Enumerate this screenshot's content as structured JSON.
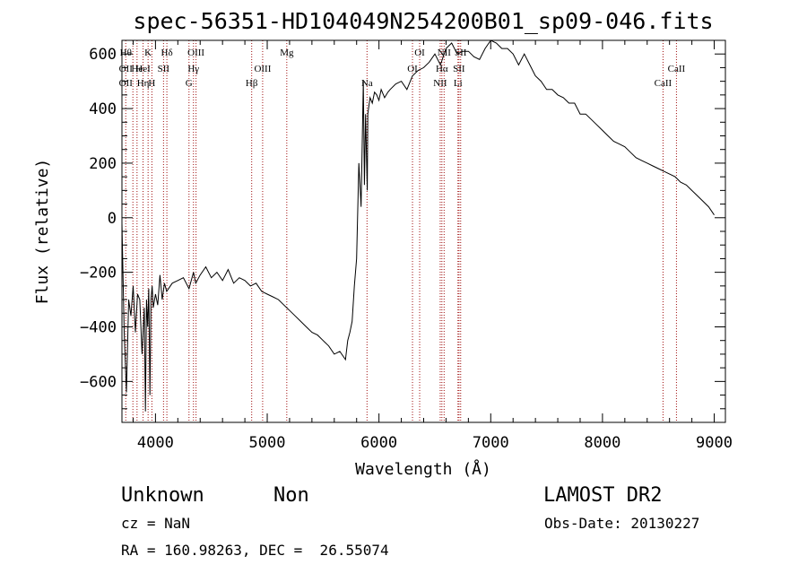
{
  "chart_data": {
    "type": "line",
    "title": "spec-56351-HD104049N254200B01_sp09-046.fits",
    "xlabel": "Wavelength (Å)",
    "ylabel": "Flux (relative)",
    "xlim": [
      3700,
      9100
    ],
    "ylim": [
      -750,
      650
    ],
    "grid": false,
    "x_ticks": [
      {
        "value": 4000,
        "label": "4000"
      },
      {
        "value": 5000,
        "label": "5000"
      },
      {
        "value": 6000,
        "label": "6000"
      },
      {
        "value": 7000,
        "label": "7000"
      },
      {
        "value": 8000,
        "label": "8000"
      },
      {
        "value": 9000,
        "label": "9000"
      }
    ],
    "y_ticks": [
      {
        "value": -600,
        "label": "−600"
      },
      {
        "value": -400,
        "label": "−400"
      },
      {
        "value": -200,
        "label": "−200"
      },
      {
        "value": 0,
        "label": "0"
      },
      {
        "value": 200,
        "label": "200"
      },
      {
        "value": 400,
        "label": "400"
      },
      {
        "value": 600,
        "label": "600"
      }
    ],
    "series": [
      {
        "x": [
          3700,
          3720,
          3740,
          3760,
          3780,
          3800,
          3820,
          3840,
          3860,
          3880,
          3900,
          3910,
          3920,
          3930,
          3940,
          3950,
          3960,
          3970,
          3980,
          4000,
          4020,
          4040,
          4060,
          4080,
          4100,
          4150,
          4200,
          4250,
          4300,
          4340,
          4360,
          4400,
          4450,
          4500,
          4550,
          4600,
          4650,
          4700,
          4750,
          4800,
          4850,
          4900,
          4950,
          5000,
          5050,
          5100,
          5150,
          5200,
          5250,
          5300,
          5350,
          5400,
          5450,
          5500,
          5550,
          5600,
          5650,
          5700,
          5720,
          5740,
          5760,
          5780,
          5800,
          5820,
          5840,
          5860,
          5870,
          5880,
          5890,
          5895,
          5900,
          5910,
          5920,
          5940,
          5960,
          5980,
          6000,
          6020,
          6050,
          6080,
          6100,
          6150,
          6200,
          6250,
          6300,
          6350,
          6400,
          6450,
          6500,
          6550,
          6600,
          6650,
          6700,
          6750,
          6800,
          6850,
          6900,
          6950,
          7000,
          7050,
          7100,
          7150,
          7200,
          7250,
          7300,
          7350,
          7400,
          7450,
          7500,
          7550,
          7600,
          7650,
          7700,
          7750,
          7800,
          7850,
          7900,
          7950,
          8000,
          8050,
          8100,
          8150,
          8200,
          8250,
          8300,
          8350,
          8400,
          8450,
          8500,
          8550,
          8600,
          8650,
          8700,
          8750,
          8800,
          8850,
          8900,
          8950,
          9000
        ],
        "y": [
          -20,
          -420,
          -640,
          -300,
          -360,
          -250,
          -420,
          -280,
          -300,
          -500,
          -330,
          -710,
          -300,
          -400,
          -260,
          -650,
          -300,
          -250,
          -330,
          -280,
          -320,
          -210,
          -300,
          -240,
          -270,
          -240,
          -230,
          -220,
          -260,
          -200,
          -240,
          -210,
          -180,
          -220,
          -200,
          -230,
          -190,
          -240,
          -220,
          -230,
          -250,
          -240,
          -270,
          -280,
          -290,
          -300,
          -320,
          -340,
          -360,
          -380,
          -400,
          -420,
          -430,
          -450,
          -470,
          -500,
          -490,
          -520,
          -450,
          -420,
          -380,
          -250,
          -150,
          200,
          40,
          500,
          120,
          380,
          200,
          100,
          380,
          410,
          440,
          420,
          460,
          450,
          430,
          470,
          440,
          460,
          470,
          490,
          500,
          470,
          520,
          540,
          550,
          570,
          600,
          560,
          620,
          640,
          600,
          610,
          610,
          590,
          580,
          620,
          660,
          640,
          620,
          620,
          600,
          560,
          600,
          560,
          520,
          500,
          470,
          470,
          450,
          440,
          420,
          420,
          380,
          380,
          360,
          340,
          320,
          300,
          280,
          270,
          260,
          240,
          220,
          210,
          200,
          190,
          180,
          170,
          160,
          150,
          130,
          120,
          100,
          80,
          60,
          40,
          10
        ]
      }
    ],
    "lines": [
      {
        "x": 3734,
        "labels": [
          {
            "row": 0,
            "text": "Hθ"
          },
          {
            "row": 1,
            "text": "OII"
          },
          {
            "row": 2,
            "text": "OII"
          }
        ]
      },
      {
        "x": 3798,
        "labels": [
          {
            "row": 0,
            "text": ""
          }
        ]
      },
      {
        "x": 3835,
        "labels": [
          {
            "row": 1,
            "text": "He"
          }
        ]
      },
      {
        "x": 3889,
        "labels": [
          {
            "row": 1,
            "text": "HeI"
          },
          {
            "row": 2,
            "text": "Hη"
          }
        ]
      },
      {
        "x": 3934,
        "labels": [
          {
            "row": 0,
            "text": "K"
          }
        ]
      },
      {
        "x": 3968,
        "labels": [
          {
            "row": 2,
            "text": "H"
          }
        ]
      },
      {
        "x": 4072,
        "labels": [
          {
            "row": 1,
            "text": "SII"
          }
        ]
      },
      {
        "x": 4102,
        "labels": [
          {
            "row": 0,
            "text": "Hδ"
          }
        ]
      },
      {
        "x": 4300,
        "labels": [
          {
            "row": 2,
            "text": "G"
          }
        ]
      },
      {
        "x": 4340,
        "labels": [
          {
            "row": 1,
            "text": "Hγ"
          }
        ]
      },
      {
        "x": 4363,
        "labels": [
          {
            "row": 0,
            "text": "OIII"
          }
        ]
      },
      {
        "x": 4861,
        "labels": [
          {
            "row": 2,
            "text": "Hβ"
          }
        ]
      },
      {
        "x": 4959,
        "labels": [
          {
            "row": 1,
            "text": "OIII"
          }
        ]
      },
      {
        "x": 5175,
        "labels": [
          {
            "row": 0,
            "text": "Mg"
          }
        ]
      },
      {
        "x": 5893,
        "labels": [
          {
            "row": 2,
            "text": "Na"
          }
        ]
      },
      {
        "x": 6300,
        "labels": [
          {
            "row": 1,
            "text": "OI"
          }
        ]
      },
      {
        "x": 6364,
        "labels": [
          {
            "row": 0,
            "text": "OI"
          }
        ]
      },
      {
        "x": 6548,
        "labels": [
          {
            "row": 2,
            "text": "NII"
          }
        ]
      },
      {
        "x": 6563,
        "labels": [
          {
            "row": 1,
            "text": "Hα"
          }
        ]
      },
      {
        "x": 6583,
        "labels": [
          {
            "row": 0,
            "text": "NII"
          }
        ]
      },
      {
        "x": 6707,
        "labels": [
          {
            "row": 2,
            "text": "Li"
          }
        ]
      },
      {
        "x": 6716,
        "labels": [
          {
            "row": 1,
            "text": "SII"
          }
        ]
      },
      {
        "x": 6731,
        "labels": [
          {
            "row": 0,
            "text": "SII"
          }
        ]
      },
      {
        "x": 8542,
        "labels": [
          {
            "row": 2,
            "text": "CaII"
          }
        ]
      },
      {
        "x": 8662,
        "labels": [
          {
            "row": 1,
            "text": "CaII"
          }
        ]
      }
    ]
  },
  "info": {
    "object_class": "Unknown",
    "subclass": "Non",
    "survey": "LAMOST DR2",
    "cz": "cz = NaN",
    "obs_date": "Obs-Date: 20130227",
    "coords": "RA = 160.98263, DEC =  26.55074"
  },
  "colors": {
    "spectrum": "#000000",
    "line_markers": "#a01010",
    "axes": "#000000"
  }
}
